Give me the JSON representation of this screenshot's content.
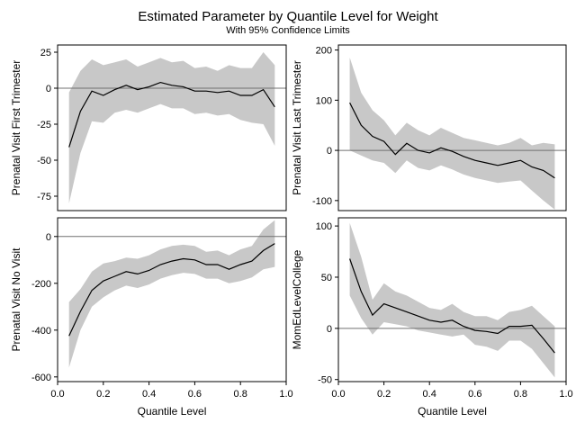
{
  "title": "Estimated Parameter by Quantile Level for Weight",
  "subtitle": "With 95% Confidence Limits",
  "colors": {
    "band": "#c8c8c8",
    "line": "#000000",
    "ref": "#707070",
    "frame": "#000000"
  },
  "chart_data": [
    {
      "type": "area",
      "ylabel": "Prenatal Visit First Trimester",
      "xlabel": "",
      "xlim": [
        0,
        1.0
      ],
      "ylim": [
        -85,
        30
      ],
      "yticks": [
        25,
        0,
        -25,
        -50,
        -75
      ],
      "xticks": [],
      "ref_y": 0,
      "x": [
        0.05,
        0.1,
        0.15,
        0.2,
        0.25,
        0.3,
        0.35,
        0.4,
        0.45,
        0.5,
        0.55,
        0.6,
        0.65,
        0.7,
        0.75,
        0.8,
        0.85,
        0.9,
        0.95
      ],
      "estimate": [
        -41,
        -16,
        -2,
        -5,
        -1,
        2,
        -1,
        1,
        4,
        2,
        1,
        -2,
        -2,
        -3,
        -2,
        -5,
        -5,
        -1,
        -13
      ],
      "upper": [
        -3,
        12,
        20,
        16,
        18,
        20,
        15,
        18,
        21,
        18,
        19,
        14,
        15,
        12,
        16,
        14,
        14,
        25,
        16
      ],
      "lower": [
        -80,
        -45,
        -23,
        -24,
        -17,
        -15,
        -17,
        -14,
        -11,
        -14,
        -14,
        -18,
        -17,
        -19,
        -18,
        -22,
        -24,
        -25,
        -40
      ]
    },
    {
      "type": "area",
      "ylabel": "Prenatal Visit Last Trimester",
      "xlabel": "",
      "xlim": [
        0,
        1.0
      ],
      "ylim": [
        -120,
        210
      ],
      "yticks": [
        200,
        100,
        0,
        -100
      ],
      "xticks": [],
      "ref_y": 0,
      "x": [
        0.05,
        0.1,
        0.15,
        0.2,
        0.25,
        0.3,
        0.35,
        0.4,
        0.45,
        0.5,
        0.55,
        0.6,
        0.65,
        0.7,
        0.75,
        0.8,
        0.85,
        0.9,
        0.95
      ],
      "estimate": [
        95,
        50,
        28,
        18,
        -8,
        14,
        0,
        -5,
        5,
        -2,
        -12,
        -20,
        -25,
        -30,
        -25,
        -20,
        -33,
        -40,
        -55
      ],
      "upper": [
        185,
        115,
        80,
        60,
        30,
        55,
        40,
        30,
        45,
        35,
        25,
        20,
        15,
        10,
        15,
        25,
        10,
        15,
        12
      ],
      "lower": [
        0,
        -10,
        -20,
        -25,
        -45,
        -20,
        -35,
        -40,
        -30,
        -38,
        -48,
        -55,
        -60,
        -65,
        -62,
        -60,
        -80,
        -100,
        -118
      ]
    },
    {
      "type": "area",
      "ylabel": "Prenatal Visit No Visit",
      "xlabel": "Quantile Level",
      "xlim": [
        0,
        1.0
      ],
      "ylim": [
        -620,
        80
      ],
      "yticks": [
        0,
        -200,
        -400,
        -600
      ],
      "xticks": [
        "0.0",
        "0.2",
        "0.4",
        "0.6",
        "0.8",
        "1.0"
      ],
      "ref_y": 0,
      "x": [
        0.05,
        0.1,
        0.15,
        0.2,
        0.25,
        0.3,
        0.35,
        0.4,
        0.45,
        0.5,
        0.55,
        0.6,
        0.65,
        0.7,
        0.75,
        0.8,
        0.85,
        0.9,
        0.95
      ],
      "estimate": [
        -425,
        -320,
        -230,
        -190,
        -170,
        -150,
        -160,
        -145,
        -120,
        -105,
        -95,
        -100,
        -120,
        -120,
        -140,
        -120,
        -105,
        -60,
        -30
      ],
      "upper": [
        -280,
        -225,
        -150,
        -115,
        -105,
        -90,
        -95,
        -80,
        -55,
        -40,
        -35,
        -40,
        -65,
        -60,
        -80,
        -55,
        -40,
        30,
        70
      ],
      "lower": [
        -560,
        -400,
        -300,
        -260,
        -230,
        -210,
        -220,
        -205,
        -180,
        -165,
        -155,
        -160,
        -180,
        -180,
        -200,
        -190,
        -175,
        -140,
        -130
      ]
    },
    {
      "type": "area",
      "ylabel": "MomEdLevelCollege",
      "xlabel": "Quantile Level",
      "xlim": [
        0,
        1.0
      ],
      "ylim": [
        -52,
        108
      ],
      "yticks": [
        100,
        50,
        0,
        -50
      ],
      "xticks": [
        "0.0",
        "0.2",
        "0.4",
        "0.6",
        "0.8",
        "1.0"
      ],
      "ref_y": 0,
      "x": [
        0.05,
        0.1,
        0.15,
        0.2,
        0.25,
        0.3,
        0.35,
        0.4,
        0.45,
        0.5,
        0.55,
        0.6,
        0.65,
        0.7,
        0.75,
        0.8,
        0.85,
        0.9,
        0.95
      ],
      "estimate": [
        68,
        36,
        13,
        24,
        20,
        16,
        12,
        8,
        6,
        8,
        2,
        -2,
        -3,
        -5,
        2,
        2,
        3,
        -10,
        -24
      ],
      "upper": [
        103,
        70,
        28,
        44,
        36,
        32,
        26,
        20,
        18,
        24,
        16,
        12,
        12,
        8,
        16,
        18,
        22,
        12,
        2
      ],
      "lower": [
        32,
        10,
        -6,
        6,
        4,
        2,
        -2,
        -4,
        -6,
        -8,
        -6,
        -16,
        -18,
        -22,
        -12,
        -12,
        -20,
        -34,
        -48
      ]
    }
  ]
}
